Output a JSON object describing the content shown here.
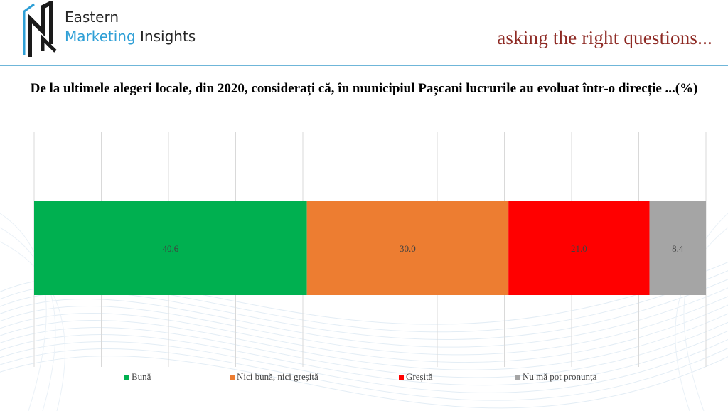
{
  "header": {
    "brand_line1": "Eastern",
    "brand_line2_a": "Marketing",
    "brand_line2_b": " Insights",
    "tagline": "asking the right questions..."
  },
  "chart_data": {
    "type": "bar",
    "orientation": "horizontal-stacked-100",
    "title": "De la ultimele alegeri locale, din 2020, considerați că, în municipiul Pașcani lucrurile au evoluat într-o direcție ...(%)",
    "xlim": [
      0,
      100
    ],
    "grid": true,
    "legend_position": "bottom",
    "series": [
      {
        "name": "Bună",
        "value": 40.6,
        "label": "40.6",
        "color": "#00b050"
      },
      {
        "name": "Nici bună, nici greșită",
        "value": 30.0,
        "label": "30.0",
        "color": "#ed7d31"
      },
      {
        "name": "Greșită",
        "value": 21.0,
        "label": "21.0",
        "color": "#ff0000"
      },
      {
        "name": "Nu mă pot pronunța",
        "value": 8.4,
        "label": "8.4",
        "color": "#a5a5a5"
      }
    ]
  }
}
